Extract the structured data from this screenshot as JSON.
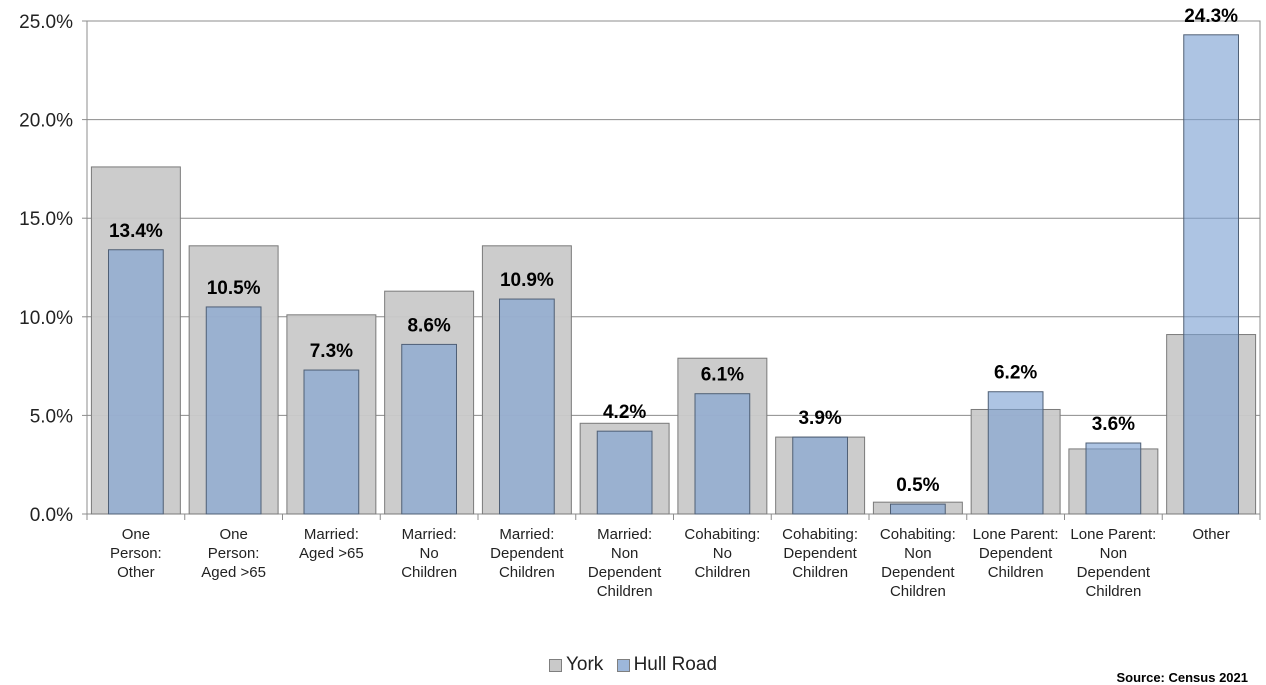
{
  "chart_data": {
    "type": "bar",
    "categories": [
      [
        "One",
        "Person:",
        "Other"
      ],
      [
        "One",
        "Person:",
        "Aged >65"
      ],
      [
        "Married:",
        "Aged >65"
      ],
      [
        "Married:",
        "No",
        "Children"
      ],
      [
        "Married:",
        "Dependent",
        "Children"
      ],
      [
        "Married:",
        "Non",
        "Dependent",
        "Children"
      ],
      [
        "Cohabiting:",
        "No",
        "Children"
      ],
      [
        "Cohabiting:",
        "Dependent",
        "Children"
      ],
      [
        "Cohabiting:",
        "Non",
        "Dependent",
        "Children"
      ],
      [
        "Lone Parent:",
        "Dependent",
        "Children"
      ],
      [
        "Lone Parent:",
        "Non",
        "Dependent",
        "Children"
      ],
      [
        "Other"
      ]
    ],
    "series": [
      {
        "name": "York",
        "values": [
          17.6,
          13.6,
          10.1,
          11.3,
          13.6,
          4.6,
          7.9,
          3.9,
          0.6,
          5.3,
          3.3,
          9.1
        ],
        "color": "#c9c9c9"
      },
      {
        "name": "Hull Road",
        "values": [
          13.4,
          10.5,
          7.3,
          8.6,
          10.9,
          4.2,
          6.1,
          3.9,
          0.5,
          6.2,
          3.6,
          24.3
        ],
        "color": "#8da9cd"
      }
    ],
    "data_labels": [
      "13.4%",
      "10.5%",
      "7.3%",
      "8.6%",
      "10.9%",
      "4.2%",
      "6.1%",
      "3.9%",
      "0.5%",
      "6.2%",
      "3.6%",
      "24.3%"
    ],
    "yticks": [
      "0.0%",
      "5.0%",
      "10.0%",
      "15.0%",
      "20.0%",
      "25.0%"
    ],
    "ylim": [
      0,
      25
    ],
    "grid": true,
    "legend_position": "bottom",
    "source": "Source: Census 2021"
  }
}
